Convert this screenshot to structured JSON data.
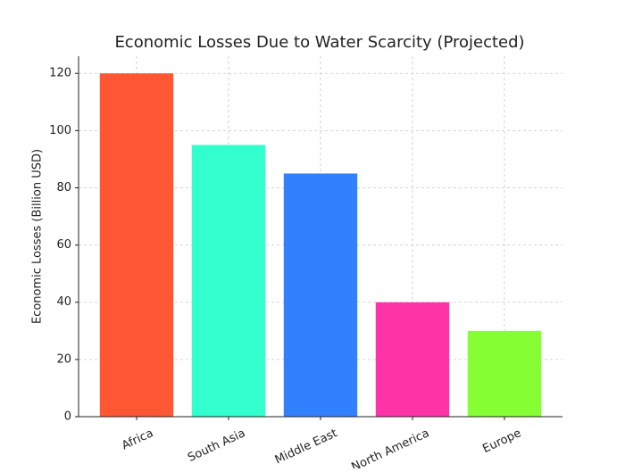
{
  "chart_data": {
    "type": "bar",
    "title": "Economic Losses Due to Water Scarcity (Projected)",
    "y_label": "Economic Losses (Billion USD)",
    "categories": [
      "Africa",
      "South Asia",
      "Middle East",
      "North America",
      "Europe"
    ],
    "values": [
      120,
      95,
      85,
      40,
      30
    ],
    "colors": [
      "#ff5733",
      "#33ffce",
      "#3380ff",
      "#ff33a8",
      "#85ff33"
    ],
    "ylim": [
      0,
      126
    ],
    "yticks": [
      0,
      20,
      40,
      60,
      80,
      100,
      120
    ],
    "grid": true
  }
}
